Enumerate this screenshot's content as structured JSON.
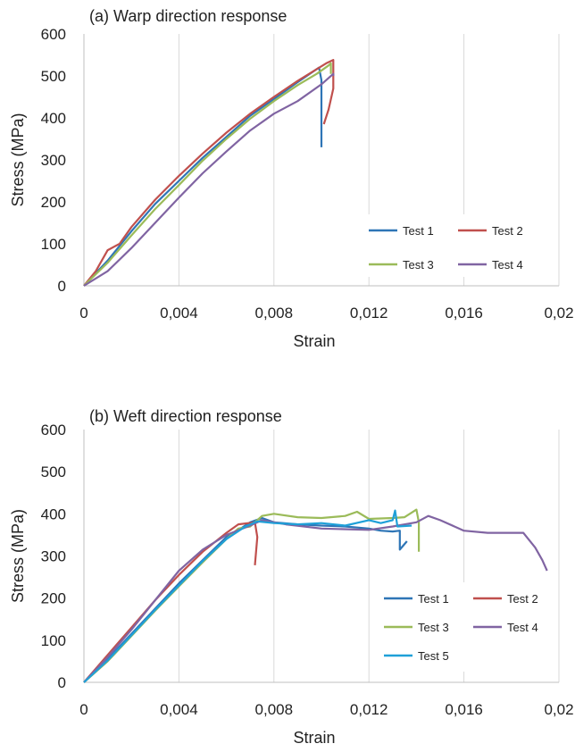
{
  "chart_data": [
    {
      "type": "line",
      "title": "(a) Warp direction response",
      "xlabel": "Strain",
      "ylabel": "Stress (MPa)",
      "xlim": [
        0,
        0.02
      ],
      "ylim": [
        0,
        600
      ],
      "x_ticks": [
        "0",
        "0,004",
        "0,008",
        "0,012",
        "0,016",
        "0,02"
      ],
      "y_ticks": [
        "0",
        "100",
        "200",
        "300",
        "400",
        "500",
        "600"
      ],
      "grid": "vertical",
      "legend_position": "lower-right",
      "series": [
        {
          "name": "Test 1",
          "color": "#2e75b6",
          "points": [
            [
              0,
              0
            ],
            [
              0.001,
              60
            ],
            [
              0.002,
              130
            ],
            [
              0.003,
              195
            ],
            [
              0.004,
              250
            ],
            [
              0.005,
              305
            ],
            [
              0.006,
              355
            ],
            [
              0.007,
              405
            ],
            [
              0.008,
              445
            ],
            [
              0.009,
              485
            ],
            [
              0.0099,
              520
            ],
            [
              0.01,
              490
            ],
            [
              0.01,
              330
            ]
          ]
        },
        {
          "name": "Test 2",
          "color": "#c0504d",
          "points": [
            [
              0,
              0
            ],
            [
              0.0005,
              35
            ],
            [
              0.001,
              85
            ],
            [
              0.0015,
              100
            ],
            [
              0.002,
              140
            ],
            [
              0.003,
              205
            ],
            [
              0.004,
              262
            ],
            [
              0.005,
              315
            ],
            [
              0.006,
              365
            ],
            [
              0.007,
              410
            ],
            [
              0.008,
              450
            ],
            [
              0.009,
              488
            ],
            [
              0.0102,
              530
            ],
            [
              0.0105,
              538
            ],
            [
              0.0105,
              470
            ],
            [
              0.0103,
              420
            ],
            [
              0.0101,
              385
            ]
          ]
        },
        {
          "name": "Test 3",
          "color": "#9bbb59",
          "points": [
            [
              0,
              0
            ],
            [
              0.001,
              55
            ],
            [
              0.002,
              120
            ],
            [
              0.003,
              183
            ],
            [
              0.004,
              240
            ],
            [
              0.005,
              298
            ],
            [
              0.006,
              350
            ],
            [
              0.007,
              398
            ],
            [
              0.008,
              440
            ],
            [
              0.009,
              478
            ],
            [
              0.0098,
              505
            ],
            [
              0.0103,
              525
            ],
            [
              0.0104,
              530
            ],
            [
              0.0104,
              505
            ]
          ]
        },
        {
          "name": "Test 4",
          "color": "#8064a2",
          "points": [
            [
              0,
              0
            ],
            [
              0.001,
              35
            ],
            [
              0.002,
              90
            ],
            [
              0.003,
              150
            ],
            [
              0.004,
              210
            ],
            [
              0.005,
              268
            ],
            [
              0.006,
              320
            ],
            [
              0.007,
              370
            ],
            [
              0.008,
              410
            ],
            [
              0.009,
              440
            ],
            [
              0.01,
              480
            ],
            [
              0.0105,
              505
            ],
            [
              0.0105,
              500
            ]
          ]
        }
      ],
      "legend": [
        {
          "label": "Test 1",
          "color": "#2e75b6"
        },
        {
          "label": "Test 2",
          "color": "#c0504d"
        },
        {
          "label": "Test 3",
          "color": "#9bbb59"
        },
        {
          "label": "Test 4",
          "color": "#8064a2"
        }
      ]
    },
    {
      "type": "line",
      "title": "(b) Weft direction response",
      "xlabel": "Strain",
      "ylabel": "Stress (MPa)",
      "xlim": [
        0,
        0.02
      ],
      "ylim": [
        0,
        600
      ],
      "x_ticks": [
        "0",
        "0,004",
        "0,008",
        "0,012",
        "0,016",
        "0,02"
      ],
      "y_ticks": [
        "0",
        "100",
        "200",
        "300",
        "400",
        "500",
        "600"
      ],
      "grid": "vertical",
      "legend_position": "lower-right",
      "series": [
        {
          "name": "Test 1",
          "color": "#2e75b6",
          "points": [
            [
              0,
              0
            ],
            [
              0.001,
              55
            ],
            [
              0.002,
              115
            ],
            [
              0.003,
              175
            ],
            [
              0.004,
              235
            ],
            [
              0.005,
              290
            ],
            [
              0.006,
              345
            ],
            [
              0.0066,
              365
            ],
            [
              0.007,
              380
            ],
            [
              0.0075,
              390
            ],
            [
              0.008,
              380
            ],
            [
              0.009,
              375
            ],
            [
              0.01,
              372
            ],
            [
              0.011,
              370
            ],
            [
              0.012,
              365
            ],
            [
              0.0125,
              360
            ],
            [
              0.013,
              358
            ],
            [
              0.0133,
              360
            ],
            [
              0.0133,
              315
            ],
            [
              0.0136,
              335
            ]
          ]
        },
        {
          "name": "Test 2",
          "color": "#c0504d",
          "points": [
            [
              0,
              0
            ],
            [
              0.001,
              65
            ],
            [
              0.002,
              130
            ],
            [
              0.003,
              195
            ],
            [
              0.004,
              255
            ],
            [
              0.005,
              310
            ],
            [
              0.006,
              355
            ],
            [
              0.0065,
              375
            ],
            [
              0.0072,
              380
            ],
            [
              0.0073,
              345
            ],
            [
              0.0072,
              278
            ]
          ]
        },
        {
          "name": "Test 3",
          "color": "#9bbb59",
          "points": [
            [
              0,
              0
            ],
            [
              0.001,
              50
            ],
            [
              0.002,
              110
            ],
            [
              0.003,
              170
            ],
            [
              0.004,
              228
            ],
            [
              0.005,
              285
            ],
            [
              0.006,
              340
            ],
            [
              0.0065,
              365
            ],
            [
              0.007,
              370
            ],
            [
              0.0075,
              395
            ],
            [
              0.008,
              400
            ],
            [
              0.009,
              392
            ],
            [
              0.01,
              390
            ],
            [
              0.011,
              395
            ],
            [
              0.0115,
              405
            ],
            [
              0.012,
              388
            ],
            [
              0.013,
              390
            ],
            [
              0.0135,
              392
            ],
            [
              0.014,
              410
            ],
            [
              0.0141,
              380
            ],
            [
              0.0141,
              310
            ]
          ]
        },
        {
          "name": "Test 4",
          "color": "#8064a2",
          "points": [
            [
              0,
              0
            ],
            [
              0.001,
              60
            ],
            [
              0.002,
              125
            ],
            [
              0.003,
              195
            ],
            [
              0.004,
              265
            ],
            [
              0.005,
              315
            ],
            [
              0.006,
              350
            ],
            [
              0.007,
              372
            ],
            [
              0.0075,
              385
            ],
            [
              0.0085,
              375
            ],
            [
              0.01,
              365
            ],
            [
              0.012,
              362
            ],
            [
              0.013,
              370
            ],
            [
              0.014,
              380
            ],
            [
              0.0145,
              395
            ],
            [
              0.015,
              385
            ],
            [
              0.016,
              360
            ],
            [
              0.017,
              355
            ],
            [
              0.0185,
              355
            ],
            [
              0.019,
              320
            ],
            [
              0.0193,
              290
            ],
            [
              0.0195,
              265
            ]
          ]
        },
        {
          "name": "Test 5",
          "color": "#1fa0d8",
          "points": [
            [
              0,
              0
            ],
            [
              0.001,
              52
            ],
            [
              0.002,
              112
            ],
            [
              0.003,
              172
            ],
            [
              0.004,
              230
            ],
            [
              0.005,
              288
            ],
            [
              0.006,
              340
            ],
            [
              0.0068,
              370
            ],
            [
              0.0073,
              382
            ],
            [
              0.008,
              378
            ],
            [
              0.009,
              375
            ],
            [
              0.01,
              378
            ],
            [
              0.011,
              372
            ],
            [
              0.012,
              385
            ],
            [
              0.0125,
              378
            ],
            [
              0.013,
              385
            ],
            [
              0.0131,
              408
            ],
            [
              0.0132,
              370
            ],
            [
              0.0138,
              372
            ]
          ]
        }
      ],
      "legend": [
        {
          "label": "Test 1",
          "color": "#2e75b6"
        },
        {
          "label": "Test 2",
          "color": "#c0504d"
        },
        {
          "label": "Test 3",
          "color": "#9bbb59"
        },
        {
          "label": "Test 4",
          "color": "#8064a2"
        },
        {
          "label": "Test 5",
          "color": "#1fa0d8"
        }
      ]
    }
  ]
}
